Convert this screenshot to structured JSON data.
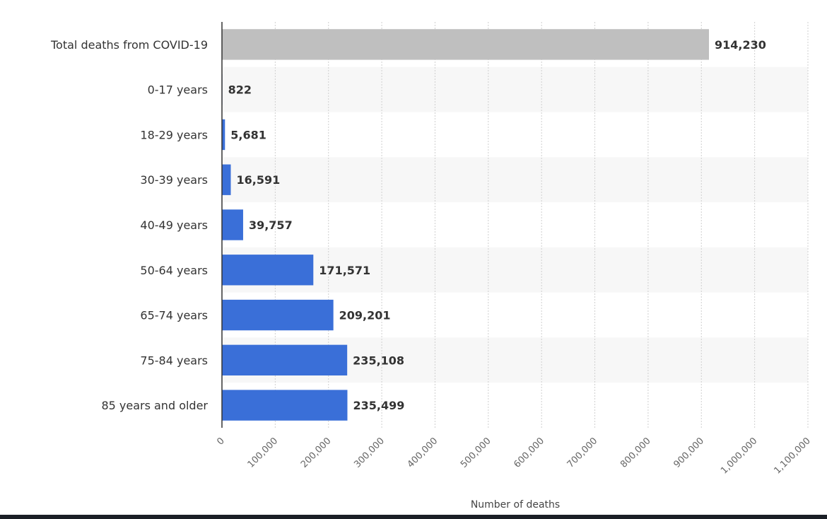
{
  "chart_data": {
    "type": "bar",
    "orientation": "horizontal",
    "title": "",
    "xlabel": "Number of deaths",
    "ylabel": "",
    "xlim": [
      0,
      1100000
    ],
    "ticks": [
      0,
      100000,
      200000,
      300000,
      400000,
      500000,
      600000,
      700000,
      800000,
      900000,
      1000000,
      1100000
    ],
    "tick_labels": [
      "0",
      "100,000",
      "200,000",
      "300,000",
      "400,000",
      "500,000",
      "600,000",
      "700,000",
      "800,000",
      "900,000",
      "1,000,000",
      "1,100,000"
    ],
    "categories": [
      "Total deaths from COVID-19",
      "0-17 years",
      "18-29 years",
      "30-39 years",
      "40-49 years",
      "50-64 years",
      "65-74 years",
      "75-84 years",
      "85 years and older"
    ],
    "values": [
      914230,
      822,
      5681,
      16591,
      39757,
      171571,
      209201,
      235108,
      235499
    ],
    "value_labels": [
      "914,230",
      "822",
      "5,681",
      "16,591",
      "39,757",
      "171,571",
      "209,201",
      "235,108",
      "235,499"
    ],
    "colors": [
      "#bfbfbf",
      "#3a6fd8",
      "#3a6fd8",
      "#3a6fd8",
      "#3a6fd8",
      "#3a6fd8",
      "#3a6fd8",
      "#3a6fd8",
      "#3a6fd8"
    ],
    "grid": true,
    "legend": "none"
  }
}
